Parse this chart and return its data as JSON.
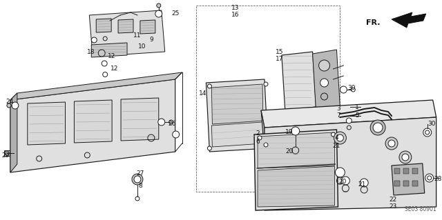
{
  "bg_color": "#ffffff",
  "fig_width": 6.4,
  "fig_height": 3.19,
  "dpi": 100,
  "diagram_code": "SE03 80901",
  "fr_label": "FR.",
  "line_color": "#1a1a1a",
  "text_color": "#111111",
  "label_fontsize": 6.5,
  "diagram_code_fontsize": 5.5,
  "gray_fill": "#c8c8c8",
  "light_gray": "#e0e0e0",
  "mid_gray": "#b0b0b0"
}
